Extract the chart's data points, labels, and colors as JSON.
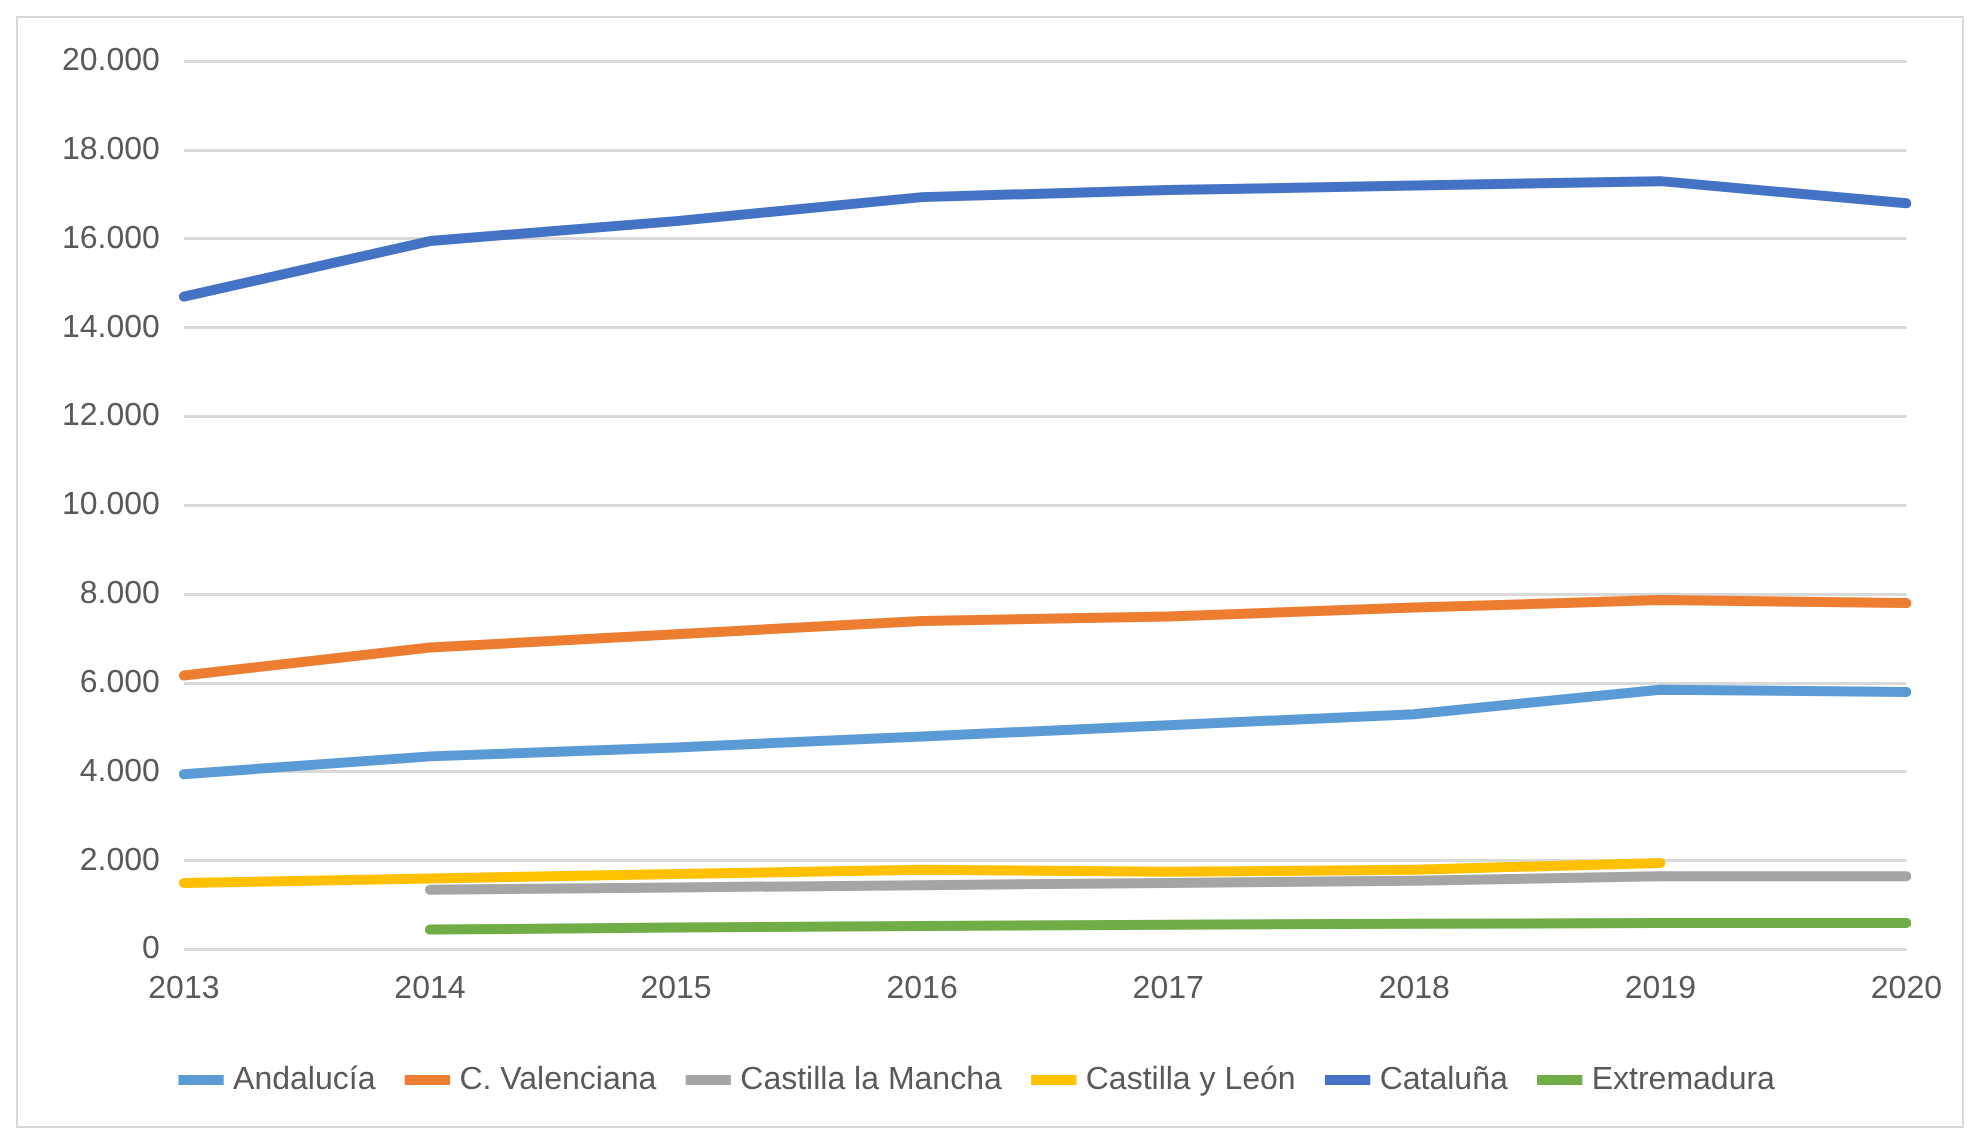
{
  "chart_data": {
    "type": "line",
    "categories": [
      "2013",
      "2014",
      "2015",
      "2016",
      "2017",
      "2018",
      "2019",
      "2020"
    ],
    "series": [
      {
        "name": "Andalucía",
        "color": "#5b9bd5",
        "values": [
          3950,
          4350,
          4550,
          4800,
          5050,
          5300,
          5850,
          5800
        ]
      },
      {
        "name": "C. Valenciana",
        "color": "#ed7d31",
        "values": [
          6170,
          6800,
          7100,
          7400,
          7500,
          7700,
          7870,
          7800
        ]
      },
      {
        "name": "Castilla la Mancha",
        "color": "#a5a5a5",
        "values": [
          null,
          1350,
          1400,
          1450,
          1500,
          1550,
          1650,
          1650
        ]
      },
      {
        "name": "Castilla y León",
        "color": "#ffc000",
        "values": [
          1500,
          1600,
          1700,
          1800,
          1750,
          1800,
          1950,
          null
        ]
      },
      {
        "name": "Cataluña",
        "color": "#4472c4",
        "values": [
          14700,
          15950,
          16400,
          16940,
          17100,
          17200,
          17300,
          16800
        ]
      },
      {
        "name": "Extremadura",
        "color": "#70ad47",
        "values": [
          null,
          450,
          500,
          530,
          560,
          580,
          600,
          600
        ]
      }
    ],
    "ylim": [
      0,
      20000
    ],
    "yticks": [
      {
        "value": 0,
        "label": "0"
      },
      {
        "value": 2000,
        "label": "2.000"
      },
      {
        "value": 4000,
        "label": "4.000"
      },
      {
        "value": 6000,
        "label": "6.000"
      },
      {
        "value": 8000,
        "label": "8.000"
      },
      {
        "value": 10000,
        "label": "10.000"
      },
      {
        "value": 12000,
        "label": "12.000"
      },
      {
        "value": 14000,
        "label": "14.000"
      },
      {
        "value": 16000,
        "label": "16.000"
      },
      {
        "value": 18000,
        "label": "18.000"
      },
      {
        "value": 20000,
        "label": "20.000"
      }
    ],
    "grid": "y",
    "legend": "bottom",
    "marker": "none",
    "line_style": "solid"
  }
}
